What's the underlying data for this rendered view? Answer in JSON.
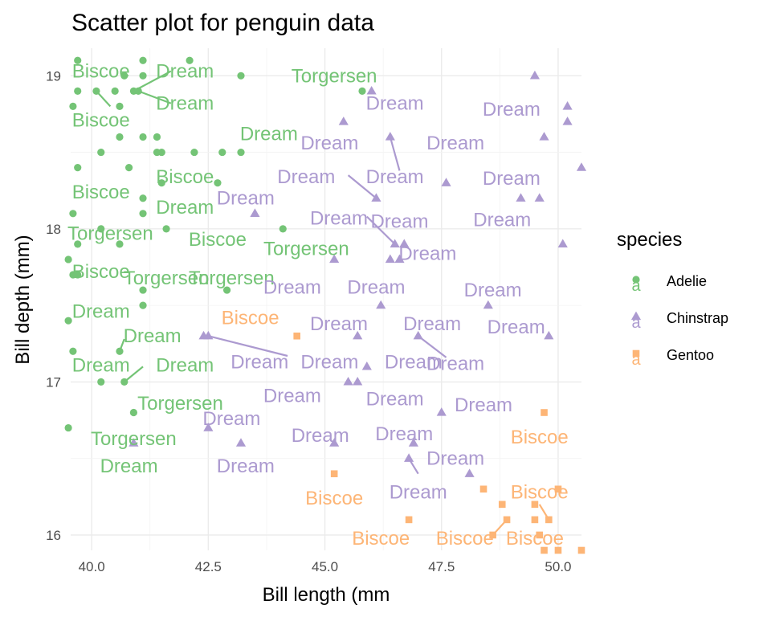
{
  "chart_data": {
    "type": "scatter",
    "title": "Scatter plot for penguin data",
    "xlabel": "Bill length (mm",
    "ylabel": "Bill depth (mm)",
    "xlim": [
      39.55,
      50.5
    ],
    "ylim": [
      15.9,
      19.18
    ],
    "xticks": [
      40.0,
      42.5,
      45.0,
      47.5,
      50.0
    ],
    "xtick_labels": [
      "40.0",
      "42.5",
      "45.0",
      "47.5",
      "50.0"
    ],
    "yticks": [
      16,
      17,
      18,
      19
    ],
    "ytick_labels": [
      "16",
      "17",
      "18",
      "19"
    ],
    "grid": true,
    "legend": {
      "title": "species",
      "position": "right",
      "key_glyph": "a",
      "entries": [
        "Adelie",
        "Chinstrap",
        "Gentoo"
      ]
    },
    "colors": {
      "Adelie": "#74c476",
      "Chinstrap": "#ac9ad0",
      "Gentoo": "#fdb576"
    },
    "series": [
      {
        "name": "Adelie",
        "marker": "circle",
        "points": [
          {
            "x": 39.7,
            "y": 19.1
          },
          {
            "x": 41.1,
            "y": 19.1
          },
          {
            "x": 42.1,
            "y": 19.1
          },
          {
            "x": 40.7,
            "y": 19.0
          },
          {
            "x": 41.1,
            "y": 19.0
          },
          {
            "x": 43.2,
            "y": 19.0
          },
          {
            "x": 39.7,
            "y": 18.9
          },
          {
            "x": 40.1,
            "y": 18.9
          },
          {
            "x": 40.5,
            "y": 18.9
          },
          {
            "x": 40.9,
            "y": 18.9
          },
          {
            "x": 41.0,
            "y": 18.9
          },
          {
            "x": 45.8,
            "y": 18.9
          },
          {
            "x": 39.6,
            "y": 18.8
          },
          {
            "x": 40.6,
            "y": 18.8
          },
          {
            "x": 40.6,
            "y": 18.6
          },
          {
            "x": 41.1,
            "y": 18.6
          },
          {
            "x": 41.4,
            "y": 18.6
          },
          {
            "x": 40.2,
            "y": 18.5
          },
          {
            "x": 41.4,
            "y": 18.5
          },
          {
            "x": 41.5,
            "y": 18.5
          },
          {
            "x": 42.2,
            "y": 18.5
          },
          {
            "x": 42.8,
            "y": 18.5
          },
          {
            "x": 43.2,
            "y": 18.5
          },
          {
            "x": 39.7,
            "y": 18.4
          },
          {
            "x": 40.8,
            "y": 18.4
          },
          {
            "x": 41.5,
            "y": 18.3
          },
          {
            "x": 42.7,
            "y": 18.3
          },
          {
            "x": 41.1,
            "y": 18.2
          },
          {
            "x": 39.6,
            "y": 18.1
          },
          {
            "x": 41.1,
            "y": 18.1
          },
          {
            "x": 40.2,
            "y": 18.0
          },
          {
            "x": 41.6,
            "y": 18.0
          },
          {
            "x": 44.1,
            "y": 18.0
          },
          {
            "x": 39.7,
            "y": 17.9
          },
          {
            "x": 40.6,
            "y": 17.9
          },
          {
            "x": 39.5,
            "y": 17.8
          },
          {
            "x": 39.6,
            "y": 17.7
          },
          {
            "x": 39.7,
            "y": 17.7
          },
          {
            "x": 41.1,
            "y": 17.6
          },
          {
            "x": 42.9,
            "y": 17.6
          },
          {
            "x": 41.1,
            "y": 17.5
          },
          {
            "x": 39.5,
            "y": 17.4
          },
          {
            "x": 39.6,
            "y": 17.2
          },
          {
            "x": 40.6,
            "y": 17.2
          },
          {
            "x": 40.2,
            "y": 17.0
          },
          {
            "x": 40.7,
            "y": 17.0
          },
          {
            "x": 40.9,
            "y": 16.8
          },
          {
            "x": 39.5,
            "y": 16.7
          }
        ],
        "labels": [
          {
            "text": "Biscoe",
            "x": 40.2,
            "y": 19.03
          },
          {
            "text": "Dream",
            "x": 42.0,
            "y": 19.03
          },
          {
            "text": "Dream",
            "x": 42.0,
            "y": 18.82
          },
          {
            "text": "Biscoe",
            "x": 40.2,
            "y": 18.71
          },
          {
            "text": "Dream",
            "x": 43.8,
            "y": 18.62
          },
          {
            "text": "Torgersen",
            "x": 45.2,
            "y": 19.0
          },
          {
            "text": "Biscoe",
            "x": 40.2,
            "y": 18.24
          },
          {
            "text": "Biscoe",
            "x": 42.0,
            "y": 18.34
          },
          {
            "text": "Dream",
            "x": 42.0,
            "y": 18.14
          },
          {
            "text": "Torgersen",
            "x": 40.4,
            "y": 17.97
          },
          {
            "text": "Biscoe",
            "x": 42.7,
            "y": 17.93
          },
          {
            "text": "Torgersen",
            "x": 44.6,
            "y": 17.87
          },
          {
            "text": "Biscoe",
            "x": 40.2,
            "y": 17.72
          },
          {
            "text": "Torgersen",
            "x": 41.6,
            "y": 17.68
          },
          {
            "text": "Torgersen",
            "x": 43.0,
            "y": 17.68
          },
          {
            "text": "Dream",
            "x": 40.2,
            "y": 17.46
          },
          {
            "text": "Dream",
            "x": 41.3,
            "y": 17.3
          },
          {
            "text": "Dream",
            "x": 40.2,
            "y": 17.11
          },
          {
            "text": "Dream",
            "x": 42.0,
            "y": 17.11
          },
          {
            "text": "Torgersen",
            "x": 41.9,
            "y": 16.86
          },
          {
            "text": "Torgersen",
            "x": 40.9,
            "y": 16.63
          },
          {
            "text": "Dream",
            "x": 40.8,
            "y": 16.45
          }
        ]
      },
      {
        "name": "Chinstrap",
        "marker": "triangle",
        "points": [
          {
            "x": 46.0,
            "y": 18.9
          },
          {
            "x": 49.5,
            "y": 19.0
          },
          {
            "x": 50.2,
            "y": 18.8
          },
          {
            "x": 50.2,
            "y": 18.7
          },
          {
            "x": 45.4,
            "y": 18.7
          },
          {
            "x": 46.4,
            "y": 18.6
          },
          {
            "x": 49.7,
            "y": 18.6
          },
          {
            "x": 50.5,
            "y": 18.4
          },
          {
            "x": 47.6,
            "y": 18.3
          },
          {
            "x": 46.1,
            "y": 18.2
          },
          {
            "x": 49.2,
            "y": 18.2
          },
          {
            "x": 49.6,
            "y": 18.2
          },
          {
            "x": 43.5,
            "y": 18.1
          },
          {
            "x": 46.5,
            "y": 17.9
          },
          {
            "x": 46.7,
            "y": 17.9
          },
          {
            "x": 50.1,
            "y": 17.9
          },
          {
            "x": 45.2,
            "y": 17.8
          },
          {
            "x": 46.4,
            "y": 17.8
          },
          {
            "x": 46.6,
            "y": 17.8
          },
          {
            "x": 46.2,
            "y": 17.5
          },
          {
            "x": 48.5,
            "y": 17.5
          },
          {
            "x": 42.4,
            "y": 17.3
          },
          {
            "x": 42.5,
            "y": 17.3
          },
          {
            "x": 45.7,
            "y": 17.3
          },
          {
            "x": 47.0,
            "y": 17.3
          },
          {
            "x": 49.8,
            "y": 17.3
          },
          {
            "x": 45.9,
            "y": 17.1
          },
          {
            "x": 45.5,
            "y": 17.0
          },
          {
            "x": 45.7,
            "y": 17.0
          },
          {
            "x": 47.5,
            "y": 16.8
          },
          {
            "x": 42.5,
            "y": 16.7
          },
          {
            "x": 40.9,
            "y": 16.6
          },
          {
            "x": 43.2,
            "y": 16.6
          },
          {
            "x": 45.2,
            "y": 16.6
          },
          {
            "x": 46.9,
            "y": 16.6
          },
          {
            "x": 46.8,
            "y": 16.5
          },
          {
            "x": 48.1,
            "y": 16.4
          }
        ],
        "labels": [
          {
            "text": "Dream",
            "x": 46.5,
            "y": 18.82
          },
          {
            "text": "Dream",
            "x": 49.0,
            "y": 18.78
          },
          {
            "text": "Dream",
            "x": 45.1,
            "y": 18.56
          },
          {
            "text": "Dream",
            "x": 47.8,
            "y": 18.56
          },
          {
            "text": "Dream",
            "x": 44.6,
            "y": 18.34
          },
          {
            "text": "Dream",
            "x": 46.5,
            "y": 18.34
          },
          {
            "text": "Dream",
            "x": 49.0,
            "y": 18.33
          },
          {
            "text": "Dream",
            "x": 43.3,
            "y": 18.2
          },
          {
            "text": "Dream",
            "x": 45.3,
            "y": 18.07
          },
          {
            "text": "Dream",
            "x": 46.6,
            "y": 18.05
          },
          {
            "text": "Dream",
            "x": 48.8,
            "y": 18.06
          },
          {
            "text": "Dream",
            "x": 47.2,
            "y": 17.84
          },
          {
            "text": "Dream",
            "x": 44.3,
            "y": 17.62
          },
          {
            "text": "Dream",
            "x": 46.1,
            "y": 17.62
          },
          {
            "text": "Dream",
            "x": 48.6,
            "y": 17.6
          },
          {
            "text": "Dream",
            "x": 45.3,
            "y": 17.38
          },
          {
            "text": "Dream",
            "x": 47.3,
            "y": 17.38
          },
          {
            "text": "Dream",
            "x": 49.1,
            "y": 17.36
          },
          {
            "text": "Dream",
            "x": 43.6,
            "y": 17.13
          },
          {
            "text": "Dream",
            "x": 45.1,
            "y": 17.13
          },
          {
            "text": "Dream",
            "x": 46.9,
            "y": 17.13
          },
          {
            "text": "Dream",
            "x": 47.8,
            "y": 17.12
          },
          {
            "text": "Dream",
            "x": 44.3,
            "y": 16.91
          },
          {
            "text": "Dream",
            "x": 46.5,
            "y": 16.89
          },
          {
            "text": "Dream",
            "x": 48.4,
            "y": 16.85
          },
          {
            "text": "Dream",
            "x": 43.0,
            "y": 16.76
          },
          {
            "text": "Dream",
            "x": 44.9,
            "y": 16.65
          },
          {
            "text": "Dream",
            "x": 46.7,
            "y": 16.66
          },
          {
            "text": "Dream",
            "x": 47.8,
            "y": 16.5
          },
          {
            "text": "Dream",
            "x": 43.3,
            "y": 16.45
          },
          {
            "text": "Dream",
            "x": 47.0,
            "y": 16.28
          }
        ]
      },
      {
        "name": "Gentoo",
        "marker": "square",
        "points": [
          {
            "x": 44.4,
            "y": 17.3
          },
          {
            "x": 49.7,
            "y": 16.8
          },
          {
            "x": 45.2,
            "y": 16.4
          },
          {
            "x": 48.4,
            "y": 16.3
          },
          {
            "x": 50.0,
            "y": 16.3
          },
          {
            "x": 48.8,
            "y": 16.2
          },
          {
            "x": 49.5,
            "y": 16.2
          },
          {
            "x": 46.8,
            "y": 16.1
          },
          {
            "x": 48.9,
            "y": 16.1
          },
          {
            "x": 49.5,
            "y": 16.1
          },
          {
            "x": 49.8,
            "y": 16.1
          },
          {
            "x": 48.6,
            "y": 16.0
          },
          {
            "x": 49.6,
            "y": 16.0
          },
          {
            "x": 49.7,
            "y": 15.9
          },
          {
            "x": 50.0,
            "y": 15.9
          },
          {
            "x": 50.5,
            "y": 15.9
          }
        ],
        "labels": [
          {
            "text": "Biscoe",
            "x": 43.4,
            "y": 17.42
          },
          {
            "text": "Biscoe",
            "x": 49.6,
            "y": 16.64
          },
          {
            "text": "Biscoe",
            "x": 45.2,
            "y": 16.24
          },
          {
            "text": "Biscoe",
            "x": 49.6,
            "y": 16.28
          },
          {
            "text": "Biscoe",
            "x": 46.2,
            "y": 15.98
          },
          {
            "text": "Biscoe",
            "x": 48.0,
            "y": 15.98
          },
          {
            "text": "Biscoe",
            "x": 49.5,
            "y": 15.98
          }
        ]
      }
    ],
    "connectors": [
      {
        "series": "Adelie",
        "from": [
          40.9,
          18.9
        ],
        "to": [
          41.7,
          19.03
        ]
      },
      {
        "series": "Adelie",
        "from": [
          41.0,
          18.9
        ],
        "to": [
          41.7,
          18.82
        ]
      },
      {
        "series": "Adelie",
        "from": [
          40.1,
          18.9
        ],
        "to": [
          40.4,
          18.8
        ]
      },
      {
        "series": "Adelie",
        "from": [
          40.6,
          17.2
        ],
        "to": [
          40.7,
          17.28
        ]
      },
      {
        "series": "Adelie",
        "from": [
          40.7,
          17.0
        ],
        "to": [
          41.1,
          17.1
        ]
      },
      {
        "series": "Chinstrap",
        "from": [
          46.4,
          18.6
        ],
        "to": [
          46.6,
          18.38
        ]
      },
      {
        "series": "Chinstrap",
        "from": [
          46.1,
          18.2
        ],
        "to": [
          45.5,
          18.35
        ]
      },
      {
        "series": "Chinstrap",
        "from": [
          46.5,
          17.9
        ],
        "to": [
          45.9,
          18.08
        ]
      },
      {
        "series": "Chinstrap",
        "from": [
          42.5,
          17.3
        ],
        "to": [
          44.2,
          17.17
        ]
      },
      {
        "series": "Chinstrap",
        "from": [
          47.0,
          17.3
        ],
        "to": [
          47.6,
          17.16
        ]
      },
      {
        "series": "Chinstrap",
        "from": [
          46.8,
          16.5
        ],
        "to": [
          47.0,
          16.4
        ]
      },
      {
        "series": "Gentoo",
        "from": [
          48.6,
          16.0
        ],
        "to": [
          48.9,
          16.1
        ]
      },
      {
        "series": "Gentoo",
        "from": [
          49.8,
          16.1
        ],
        "to": [
          49.6,
          16.2
        ]
      }
    ]
  }
}
